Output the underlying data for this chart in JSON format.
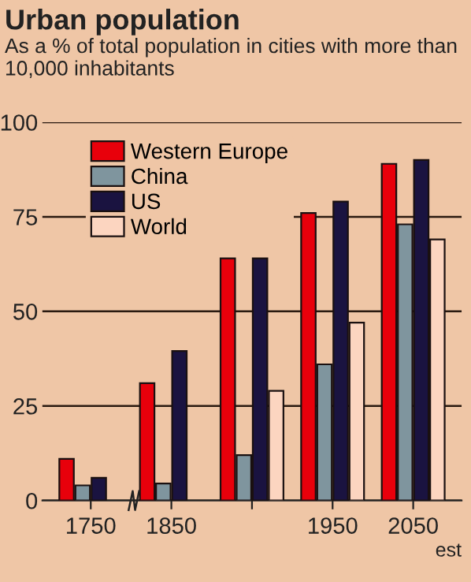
{
  "chart_data": {
    "type": "bar",
    "title": "Urban population",
    "subtitle": "As a % of total population in cities with more than 10,000 inhabitants",
    "categories": [
      "1750",
      "1850",
      null,
      "1950",
      "2050"
    ],
    "series": [
      {
        "name": "Western Europe",
        "color": "#e8000b",
        "values": [
          11,
          31,
          64,
          76,
          89
        ]
      },
      {
        "name": "China",
        "color": "#7f959e",
        "values": [
          4,
          4.5,
          12,
          36,
          73
        ]
      },
      {
        "name": "US",
        "color": "#1a1340",
        "values": [
          6,
          39.5,
          64,
          79,
          90
        ]
      },
      {
        "name": "World",
        "color": "#fcd5c0",
        "values": [
          null,
          null,
          29,
          47,
          69
        ]
      }
    ],
    "annotations": [
      "est"
    ],
    "ylim": [
      0,
      100
    ],
    "yticks": [
      0,
      25,
      50,
      75,
      100
    ],
    "grid": "y",
    "legend": "top left"
  }
}
